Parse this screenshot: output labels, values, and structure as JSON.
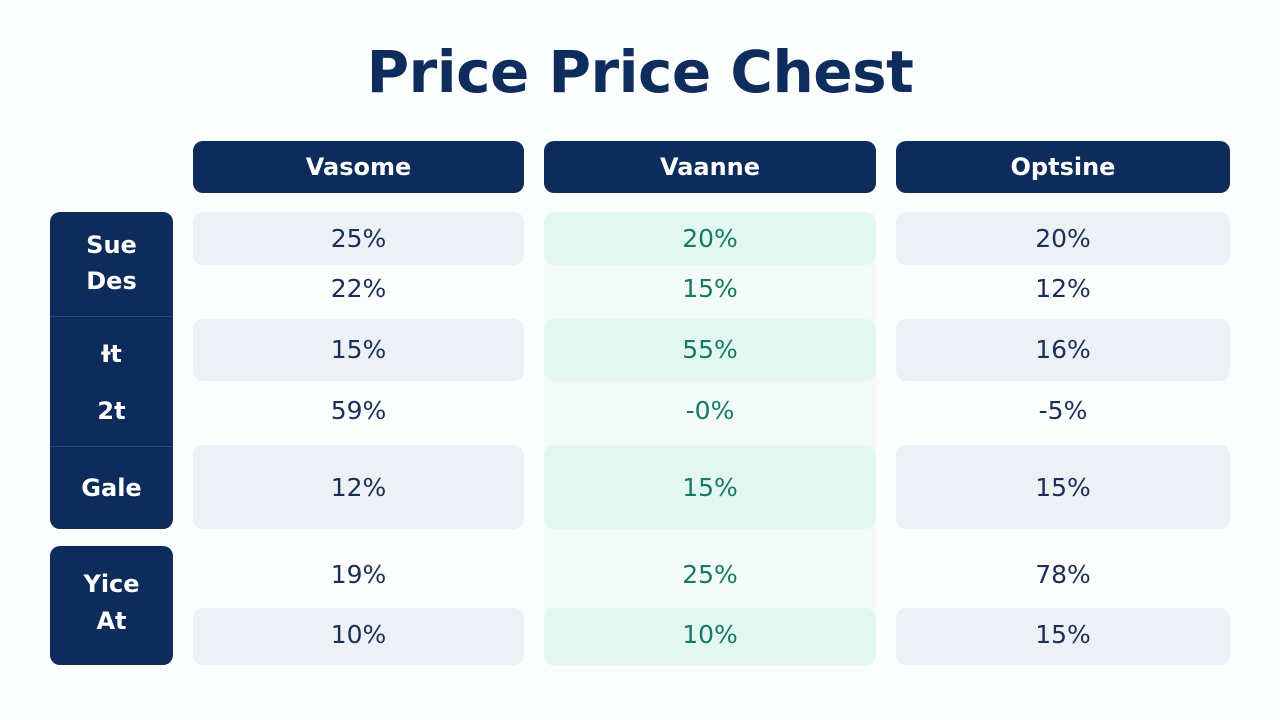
{
  "title": "Price Price Chest",
  "columns": [
    "Vasome",
    "Vaanne",
    "Optsine"
  ],
  "row_groups": [
    {
      "lines": [
        "Sue",
        "Des"
      ]
    },
    {
      "lines": [
        "Ɨt",
        "2t"
      ]
    },
    {
      "lines": [
        "Gale"
      ]
    },
    {
      "lines": [
        "Yice",
        "At"
      ]
    }
  ],
  "rows": [
    [
      "25%",
      "20%",
      "20%"
    ],
    [
      "22%",
      "15%",
      "12%"
    ],
    [
      "15%",
      "55%",
      "16%"
    ],
    [
      "59%",
      "-0%",
      "-5%"
    ],
    [
      "12%",
      "15%",
      "15%"
    ],
    [
      "19%",
      "25%",
      "78%"
    ],
    [
      "10%",
      "10%",
      "15%"
    ]
  ],
  "colors": {
    "header_bg": "#0e2c5b",
    "title_text": "#0f2d5c",
    "value_text": "#1a2f57",
    "highlight_text": "#177a63",
    "row_band": "#edf1f5",
    "highlight_band": "#e3f7f1"
  }
}
